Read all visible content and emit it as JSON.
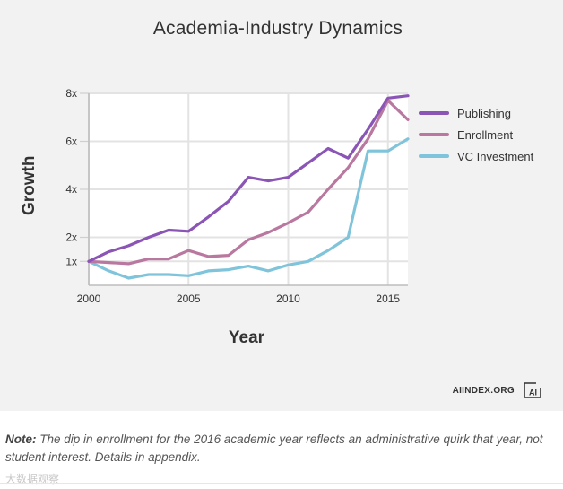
{
  "chart_data": {
    "type": "line",
    "title": "Academia-Industry Dynamics",
    "xlabel": "Year",
    "ylabel": "Growth",
    "x": [
      2000,
      2001,
      2002,
      2003,
      2004,
      2005,
      2006,
      2007,
      2008,
      2009,
      2010,
      2011,
      2012,
      2013,
      2014,
      2015,
      2016
    ],
    "xlim": [
      2000,
      2016
    ],
    "ylim": [
      0,
      8
    ],
    "xticks": [
      2000,
      2005,
      2010,
      2015
    ],
    "xtick_labels": [
      "2000",
      "2005",
      "2010",
      "2015"
    ],
    "yticks": [
      1,
      2,
      4,
      6,
      8
    ],
    "ytick_labels": [
      "1x",
      "2x",
      "4x",
      "6x",
      "8x"
    ],
    "grid": true,
    "legend_position": "right",
    "series": [
      {
        "name": "Publishing",
        "color": "#8b55b6",
        "values": [
          1.0,
          1.4,
          1.65,
          2.0,
          2.3,
          2.25,
          2.85,
          3.5,
          4.5,
          4.35,
          4.5,
          5.1,
          5.7,
          5.3,
          6.5,
          7.8,
          7.9
        ]
      },
      {
        "name": "Enrollment",
        "color": "#b9789f",
        "values": [
          1.0,
          0.95,
          0.9,
          1.1,
          1.1,
          1.45,
          1.2,
          1.25,
          1.9,
          2.2,
          2.6,
          3.05,
          4.0,
          4.9,
          6.1,
          7.7,
          6.9
        ]
      },
      {
        "name": "VC Investment",
        "color": "#7fc4da",
        "values": [
          1.0,
          0.6,
          0.3,
          0.45,
          0.45,
          0.4,
          0.6,
          0.65,
          0.8,
          0.6,
          0.85,
          1.0,
          1.45,
          2.0,
          5.6,
          5.6,
          6.1
        ]
      }
    ]
  },
  "source": "AIINDEX.ORG",
  "logo_text": "AI",
  "note": {
    "label": "Note:",
    "text": " The dip in enrollment for the 2016 academic year reflects an administrative quirk that year, not student interest. Details in appendix."
  },
  "watermark": "大数据观察"
}
